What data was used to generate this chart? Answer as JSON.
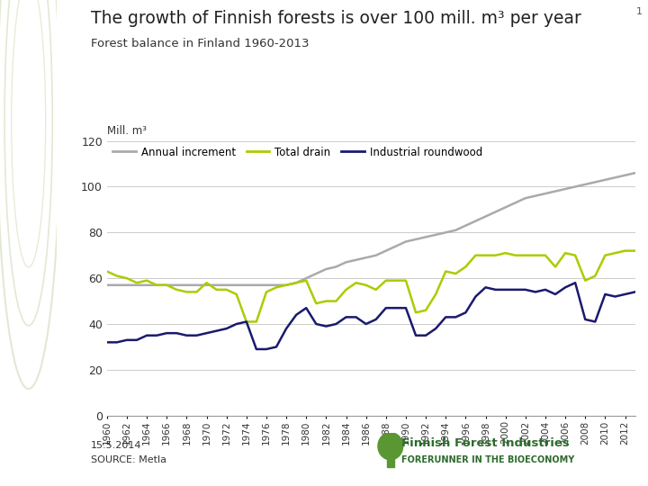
{
  "title": "The growth of Finnish forests is over 100 mill. m³ per year",
  "subtitle": "Forest balance in Finland 1960-2013",
  "ylabel": "Mill. m³",
  "date_text": "15.5.2014",
  "source_text": "SOURCE: Metla",
  "slide_number": "1",
  "years": [
    1960,
    1961,
    1962,
    1963,
    1964,
    1965,
    1966,
    1967,
    1968,
    1969,
    1970,
    1971,
    1972,
    1973,
    1974,
    1975,
    1976,
    1977,
    1978,
    1979,
    1980,
    1981,
    1982,
    1983,
    1984,
    1985,
    1986,
    1987,
    1988,
    1989,
    1990,
    1991,
    1992,
    1993,
    1994,
    1995,
    1996,
    1997,
    1998,
    1999,
    2000,
    2001,
    2002,
    2003,
    2004,
    2005,
    2006,
    2007,
    2008,
    2009,
    2010,
    2011,
    2012,
    2013
  ],
  "annual_increment": [
    57,
    57,
    57,
    57,
    57,
    57,
    57,
    57,
    57,
    57,
    57,
    57,
    57,
    57,
    57,
    57,
    57,
    57,
    57,
    58,
    60,
    62,
    64,
    65,
    67,
    68,
    69,
    70,
    72,
    74,
    76,
    77,
    78,
    79,
    80,
    81,
    83,
    85,
    87,
    89,
    91,
    93,
    95,
    96,
    97,
    98,
    99,
    100,
    101,
    102,
    103,
    104,
    105,
    106
  ],
  "total_drain": [
    63,
    61,
    60,
    58,
    59,
    57,
    57,
    55,
    54,
    54,
    58,
    55,
    55,
    53,
    41,
    41,
    54,
    56,
    57,
    58,
    59,
    49,
    50,
    50,
    55,
    58,
    57,
    55,
    59,
    59,
    59,
    45,
    46,
    53,
    63,
    62,
    65,
    70,
    70,
    70,
    71,
    70,
    70,
    70,
    70,
    65,
    71,
    70,
    59,
    61,
    70,
    71,
    72,
    72
  ],
  "industrial_roundwood": [
    32,
    32,
    33,
    33,
    35,
    35,
    36,
    36,
    35,
    35,
    36,
    37,
    38,
    40,
    41,
    29,
    29,
    30,
    38,
    44,
    47,
    40,
    39,
    40,
    43,
    43,
    40,
    42,
    47,
    47,
    47,
    35,
    35,
    38,
    43,
    43,
    45,
    52,
    56,
    55,
    55,
    55,
    55,
    54,
    55,
    53,
    56,
    58,
    42,
    41,
    53,
    52,
    53,
    54
  ],
  "annual_increment_color": "#aaaaaa",
  "total_drain_color": "#aacc00",
  "industrial_roundwood_color": "#1a1a6e",
  "ylim": [
    0,
    120
  ],
  "yticks": [
    0,
    20,
    40,
    60,
    80,
    100,
    120
  ],
  "background_color": "#ffffff",
  "left_panel_color": "#dde8d0"
}
